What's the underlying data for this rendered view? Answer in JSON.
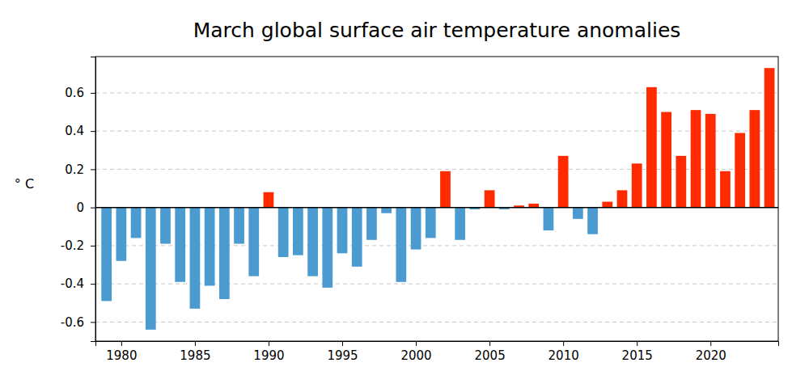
{
  "chart_data": {
    "type": "bar",
    "title": "March global surface air temperature anomalies",
    "y_label": "° C",
    "x": [
      1979,
      1980,
      1981,
      1982,
      1983,
      1984,
      1985,
      1986,
      1987,
      1988,
      1989,
      1990,
      1991,
      1992,
      1993,
      1994,
      1995,
      1996,
      1997,
      1998,
      1999,
      2000,
      2001,
      2002,
      2003,
      2004,
      2005,
      2006,
      2007,
      2008,
      2009,
      2010,
      2011,
      2012,
      2013,
      2014,
      2015,
      2016,
      2017,
      2018,
      2019,
      2020,
      2021,
      2022,
      2023,
      2024
    ],
    "values": [
      -0.49,
      -0.28,
      -0.16,
      -0.64,
      -0.19,
      -0.39,
      -0.53,
      -0.41,
      -0.48,
      -0.19,
      -0.36,
      0.08,
      -0.26,
      -0.25,
      -0.36,
      -0.42,
      -0.24,
      -0.31,
      -0.17,
      -0.03,
      -0.39,
      -0.22,
      -0.16,
      0.19,
      -0.17,
      -0.01,
      0.09,
      -0.01,
      0.01,
      0.02,
      -0.12,
      0.27,
      -0.06,
      -0.14,
      0.03,
      0.09,
      0.23,
      0.63,
      0.5,
      0.27,
      0.51,
      0.49,
      0.19,
      0.39,
      0.51,
      0.73
    ],
    "colors": [
      "#4b9bd1",
      "#4b9bd1",
      "#4b9bd1",
      "#4b9bd1",
      "#4b9bd1",
      "#4b9bd1",
      "#4b9bd1",
      "#4b9bd1",
      "#4b9bd1",
      "#4b9bd1",
      "#4b9bd1",
      "#ff2a00",
      "#4b9bd1",
      "#4b9bd1",
      "#4b9bd1",
      "#4b9bd1",
      "#4b9bd1",
      "#4b9bd1",
      "#4b9bd1",
      "#4b9bd1",
      "#4b9bd1",
      "#4b9bd1",
      "#4b9bd1",
      "#ff2a00",
      "#4b9bd1",
      "#4b9bd1",
      "#ff2a00",
      "#4b9bd1",
      "#ff2a00",
      "#ff2a00",
      "#4b9bd1",
      "#ff2a00",
      "#4b9bd1",
      "#4b9bd1",
      "#ff2a00",
      "#ff2a00",
      "#ff2a00",
      "#ff2a00",
      "#ff2a00",
      "#ff2a00",
      "#ff2a00",
      "#ff2a00",
      "#ff2a00",
      "#ff2a00",
      "#ff2a00",
      "#ff2a00"
    ],
    "xlim": [
      1978.25,
      2024.6
    ],
    "xticks": [
      1980,
      1985,
      1990,
      1995,
      2000,
      2005,
      2010,
      2015,
      2020
    ],
    "ylim": [
      -0.7,
      0.79
    ],
    "yticks": [
      -0.6,
      -0.4,
      -0.2,
      0,
      0.2,
      0.4,
      0.6
    ],
    "grid": true
  }
}
